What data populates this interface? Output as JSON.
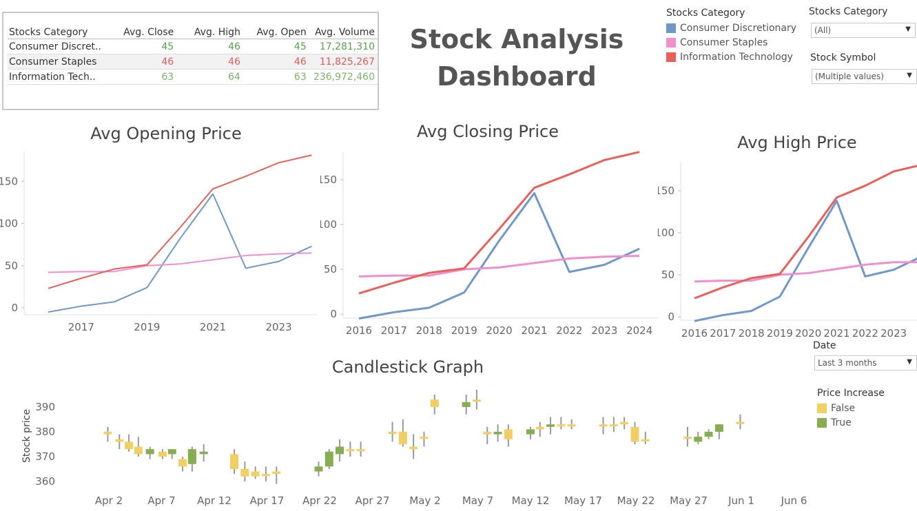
{
  "summary": {
    "headers": [
      "Stocks Category",
      "Avg. Close",
      "Avg. High",
      "Avg. Open",
      "Avg. Volume"
    ],
    "rows": [
      {
        "category": "Consumer Discret..",
        "close": "45",
        "high": "46",
        "open": "45",
        "volume": "17,281,310",
        "color": "green"
      },
      {
        "category": "Consumer Staples",
        "close": "46",
        "high": "46",
        "open": "46",
        "volume": "11,825,267",
        "color": "red"
      },
      {
        "category": "Information Tech..",
        "close": "63",
        "high": "64",
        "open": "63",
        "volume": "236,972,460",
        "color": "lgreen"
      }
    ]
  },
  "title": "Stock Analysis Dashboard",
  "title_lines": [
    "Stock Analysis",
    "Dashboard"
  ],
  "legend": {
    "title": "Stocks Category",
    "items": [
      {
        "label": "Consumer Discretionary",
        "color": "#6f98c8"
      },
      {
        "label": "Consumer Staples",
        "color": "#ef8fce"
      },
      {
        "label": "Information Technology",
        "color": "#e8605a"
      }
    ]
  },
  "filters": {
    "category_label": "Stocks Category",
    "category_value": "(All)",
    "symbol_label": "Stock Symbol",
    "symbol_value": "(Multiple values)",
    "date_label": "Date",
    "date_value": "Last 3 months"
  },
  "price_legend": {
    "title": "Price Increase",
    "items": [
      {
        "label": "False",
        "color": "#f2cf63"
      },
      {
        "label": "True",
        "color": "#86ad4f"
      }
    ]
  },
  "chart_data": [
    {
      "type": "line",
      "title": "Avg Opening Price",
      "x": [
        2016,
        2017,
        2018,
        2019,
        2020,
        2021,
        2022,
        2023,
        2024
      ],
      "x_ticks": [
        "2017",
        "2019",
        "2021",
        "2023"
      ],
      "ylim": [
        -5,
        185
      ],
      "y_ticks": [
        0,
        50,
        100,
        150
      ],
      "series": [
        {
          "name": "Consumer Discretionary",
          "color": "#6f98c8",
          "values": [
            -5,
            2,
            7,
            24,
            82,
            135,
            47,
            55,
            73
          ]
        },
        {
          "name": "Consumer Staples",
          "color": "#ef8fce",
          "values": [
            42,
            43,
            43,
            50,
            52,
            57,
            62,
            64,
            65
          ]
        },
        {
          "name": "Information Technology",
          "color": "#e8605a",
          "values": [
            23,
            35,
            46,
            51,
            95,
            141,
            156,
            172,
            181
          ]
        }
      ]
    },
    {
      "type": "line",
      "title": "Avg Closing Price",
      "x": [
        2016,
        2017,
        2018,
        2019,
        2020,
        2021,
        2022,
        2023,
        2024
      ],
      "x_ticks": [
        "2016",
        "2017",
        "2018",
        "2019",
        "2020",
        "2021",
        "2022",
        "2023",
        "2024"
      ],
      "ylim": [
        -5,
        185
      ],
      "y_ticks": [
        0,
        50,
        100,
        150
      ],
      "series": [
        {
          "name": "Consumer Discretionary",
          "color": "#6f98c8",
          "values": [
            -5,
            2,
            7,
            24,
            82,
            135,
            47,
            55,
            73
          ]
        },
        {
          "name": "Consumer Staples",
          "color": "#ef8fce",
          "values": [
            42,
            43,
            43,
            50,
            52,
            57,
            62,
            64,
            65
          ]
        },
        {
          "name": "Information Technology",
          "color": "#e8605a",
          "values": [
            23,
            35,
            46,
            51,
            95,
            141,
            156,
            172,
            181
          ]
        }
      ]
    },
    {
      "type": "line",
      "title": "Avg High Price",
      "x": [
        2016,
        2017,
        2018,
        2019,
        2020,
        2021,
        2022,
        2023,
        2024
      ],
      "x_ticks": [
        "2016",
        "2017",
        "2018",
        "2019",
        "2020",
        "2021",
        "2022",
        "2023",
        "2"
      ],
      "ylim": [
        -5,
        185
      ],
      "y_ticks": [
        0,
        50,
        100,
        150
      ],
      "series": [
        {
          "name": "Consumer Discretionary",
          "color": "#6f98c8",
          "values": [
            -5,
            2,
            7,
            24,
            82,
            138,
            48,
            56,
            72
          ]
        },
        {
          "name": "Consumer Staples",
          "color": "#ef8fce",
          "values": [
            42,
            43,
            43,
            50,
            52,
            57,
            62,
            65,
            65
          ]
        },
        {
          "name": "Information Technology",
          "color": "#e8605a",
          "values": [
            22,
            35,
            46,
            51,
            95,
            142,
            156,
            173,
            181
          ]
        }
      ]
    },
    {
      "type": "candlestick",
      "title": "Candlestick Graph",
      "ylabel": "Stock price",
      "ylim": [
        357,
        395
      ],
      "y_ticks": [
        360,
        370,
        380,
        390
      ],
      "x_ticks": [
        {
          "label": "Apr 2",
          "day": 2
        },
        {
          "label": "Apr 7",
          "day": 7
        },
        {
          "label": "Apr 12",
          "day": 12
        },
        {
          "label": "Apr 17",
          "day": 17
        },
        {
          "label": "Apr 22",
          "day": 22
        },
        {
          "label": "Apr 27",
          "day": 27
        },
        {
          "label": "May 2",
          "day": 32
        },
        {
          "label": "May 7",
          "day": 37
        },
        {
          "label": "May 12",
          "day": 42
        },
        {
          "label": "May 17",
          "day": 47
        },
        {
          "label": "May 22",
          "day": 52
        },
        {
          "label": "May 27",
          "day": 57
        },
        {
          "label": "Jun 1",
          "day": 62
        },
        {
          "label": "Jun 6",
          "day": 67
        }
      ],
      "candles": [
        {
          "day": 1.9,
          "open": 380,
          "close": 379,
          "low": 376,
          "high": 382,
          "up": false
        },
        {
          "day": 3.0,
          "open": 377,
          "close": 376,
          "low": 373,
          "high": 379,
          "up": false
        },
        {
          "day": 3.9,
          "open": 376,
          "close": 373,
          "low": 372,
          "high": 379,
          "up": false
        },
        {
          "day": 4.8,
          "open": 374,
          "close": 371,
          "low": 370,
          "high": 378,
          "up": false
        },
        {
          "day": 5.9,
          "open": 371,
          "close": 373,
          "low": 369,
          "high": 374,
          "up": true
        },
        {
          "day": 7.1,
          "open": 372,
          "close": 370,
          "low": 369,
          "high": 373,
          "up": false
        },
        {
          "day": 8.0,
          "open": 371,
          "close": 373,
          "low": 369,
          "high": 373,
          "up": true
        },
        {
          "day": 9.0,
          "open": 369,
          "close": 366,
          "low": 364,
          "high": 370,
          "up": false
        },
        {
          "day": 9.9,
          "open": 367,
          "close": 373,
          "low": 364,
          "high": 374,
          "up": true
        },
        {
          "day": 11.0,
          "open": 371,
          "close": 372,
          "low": 368,
          "high": 375,
          "up": true
        },
        {
          "day": 13.9,
          "open": 371,
          "close": 365,
          "low": 363,
          "high": 373,
          "up": false
        },
        {
          "day": 14.9,
          "open": 365,
          "close": 362,
          "low": 360,
          "high": 368,
          "up": false
        },
        {
          "day": 15.9,
          "open": 364,
          "close": 362,
          "low": 361,
          "high": 366,
          "up": false
        },
        {
          "day": 16.9,
          "open": 363,
          "close": 363,
          "low": 360,
          "high": 366,
          "up": false
        },
        {
          "day": 17.9,
          "open": 364,
          "close": 363,
          "low": 359,
          "high": 366,
          "up": false
        },
        {
          "day": 21.9,
          "open": 364,
          "close": 366,
          "low": 362,
          "high": 368,
          "up": true
        },
        {
          "day": 22.9,
          "open": 366,
          "close": 372,
          "low": 365,
          "high": 373,
          "up": true
        },
        {
          "day": 23.9,
          "open": 371,
          "close": 374,
          "low": 368,
          "high": 377,
          "up": true
        },
        {
          "day": 24.9,
          "open": 373,
          "close": 373,
          "low": 370,
          "high": 376,
          "up": false
        },
        {
          "day": 25.9,
          "open": 373,
          "close": 373,
          "low": 370,
          "high": 376,
          "up": false
        },
        {
          "day": 28.9,
          "open": 380,
          "close": 380,
          "low": 376,
          "high": 384,
          "up": false
        },
        {
          "day": 29.9,
          "open": 380,
          "close": 375,
          "low": 374,
          "high": 385,
          "up": false
        },
        {
          "day": 30.9,
          "open": 374,
          "close": 373,
          "low": 369,
          "high": 379,
          "up": false
        },
        {
          "day": 31.9,
          "open": 378,
          "close": 378,
          "low": 374,
          "high": 380,
          "up": false
        },
        {
          "day": 32.9,
          "open": 393,
          "close": 390,
          "low": 387,
          "high": 395,
          "up": false
        },
        {
          "day": 35.9,
          "open": 390,
          "close": 392,
          "low": 387,
          "high": 395,
          "up": true
        },
        {
          "day": 36.9,
          "open": 393,
          "close": 393,
          "low": 389,
          "high": 397,
          "up": false
        },
        {
          "day": 37.9,
          "open": 380,
          "close": 379,
          "low": 375,
          "high": 382,
          "up": false
        },
        {
          "day": 38.9,
          "open": 379,
          "close": 380,
          "low": 376,
          "high": 383,
          "up": true
        },
        {
          "day": 39.9,
          "open": 381,
          "close": 377,
          "low": 374,
          "high": 383,
          "up": false
        },
        {
          "day": 42.0,
          "open": 379,
          "close": 381,
          "low": 377,
          "high": 382,
          "up": true
        },
        {
          "day": 42.9,
          "open": 382,
          "close": 381,
          "low": 378,
          "high": 384,
          "up": false
        },
        {
          "day": 43.9,
          "open": 382,
          "close": 383,
          "low": 379,
          "high": 386,
          "up": true
        },
        {
          "day": 44.9,
          "open": 383,
          "close": 383,
          "low": 381,
          "high": 386,
          "up": false
        },
        {
          "day": 45.9,
          "open": 383,
          "close": 383,
          "low": 381,
          "high": 385,
          "up": false
        },
        {
          "day": 48.9,
          "open": 383,
          "close": 383,
          "low": 379,
          "high": 386,
          "up": false
        },
        {
          "day": 49.9,
          "open": 383,
          "close": 383,
          "low": 380,
          "high": 386,
          "up": false
        },
        {
          "day": 50.9,
          "open": 384,
          "close": 383,
          "low": 381,
          "high": 386,
          "up": false
        },
        {
          "day": 51.9,
          "open": 382,
          "close": 376,
          "low": 375,
          "high": 384,
          "up": false
        },
        {
          "day": 52.9,
          "open": 377,
          "close": 377,
          "low": 375,
          "high": 380,
          "up": false
        },
        {
          "day": 56.9,
          "open": 378,
          "close": 378,
          "low": 374,
          "high": 382,
          "up": false
        },
        {
          "day": 57.9,
          "open": 376,
          "close": 378,
          "low": 375,
          "high": 380,
          "up": true
        },
        {
          "day": 58.9,
          "open": 378,
          "close": 380,
          "low": 377,
          "high": 381,
          "up": true
        },
        {
          "day": 59.9,
          "open": 380,
          "close": 383,
          "low": 377,
          "high": 383,
          "up": true
        },
        {
          "day": 61.9,
          "open": 384,
          "close": 384,
          "low": 381,
          "high": 387,
          "up": false
        }
      ]
    }
  ]
}
